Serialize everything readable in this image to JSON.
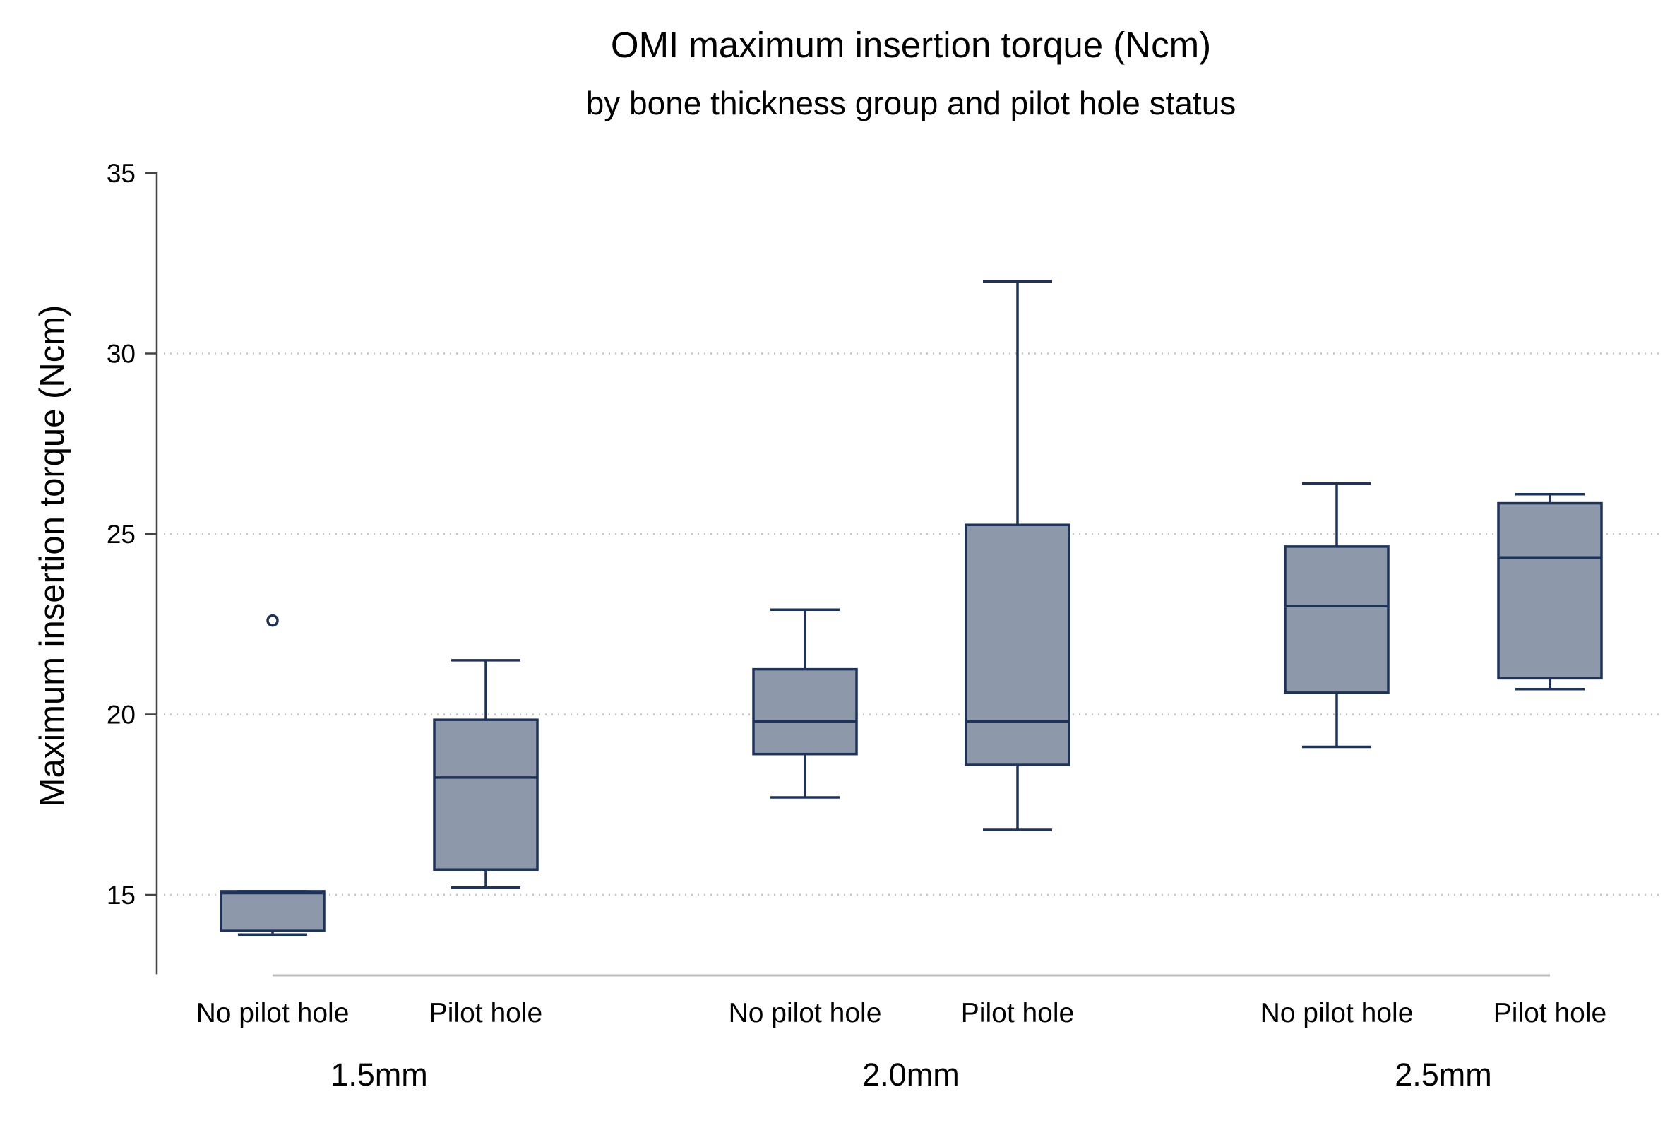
{
  "chart_data": {
    "type": "box",
    "title": "OMI maximum insertion torque (Ncm)",
    "subtitle": "by bone thickness group and pilot hole status",
    "xlabel": "",
    "ylabel": "Maximum insertion torque (Ncm)",
    "ylim": [
      12.8,
      35
    ],
    "yticks": [
      15,
      20,
      25,
      30,
      35
    ],
    "grid": {
      "horizontal": "dotted",
      "vertical": false
    },
    "colors": {
      "box_fill": "#8d98aa",
      "box_stroke": "#1f3358",
      "grid": "#c4c4c4",
      "axis": "#444444",
      "group_line": "#bcbcbc"
    },
    "groups": [
      {
        "label": "1.5mm",
        "boxes": [
          {
            "category": "No pilot hole",
            "whisker_low": 13.9,
            "q1": 14.0,
            "median": 15.05,
            "q3": 15.1,
            "whisker_high": 15.1,
            "outliers": [
              22.6
            ]
          },
          {
            "category": "Pilot hole",
            "whisker_low": 15.2,
            "q1": 15.7,
            "median": 18.25,
            "q3": 19.85,
            "whisker_high": 21.5,
            "outliers": []
          }
        ]
      },
      {
        "label": "2.0mm",
        "boxes": [
          {
            "category": "No pilot hole",
            "whisker_low": 17.7,
            "q1": 18.9,
            "median": 19.8,
            "q3": 21.25,
            "whisker_high": 22.9,
            "outliers": []
          },
          {
            "category": "Pilot hole",
            "whisker_low": 16.8,
            "q1": 18.6,
            "median": 19.8,
            "q3": 25.25,
            "whisker_high": 32.0,
            "outliers": []
          }
        ]
      },
      {
        "label": "2.5mm",
        "boxes": [
          {
            "category": "No pilot hole",
            "whisker_low": 19.1,
            "q1": 20.6,
            "median": 23.0,
            "q3": 24.65,
            "whisker_high": 26.4,
            "outliers": []
          },
          {
            "category": "Pilot hole",
            "whisker_low": 20.7,
            "q1": 21.0,
            "median": 24.35,
            "q3": 25.85,
            "whisker_high": 26.1,
            "outliers": []
          }
        ]
      }
    ]
  }
}
